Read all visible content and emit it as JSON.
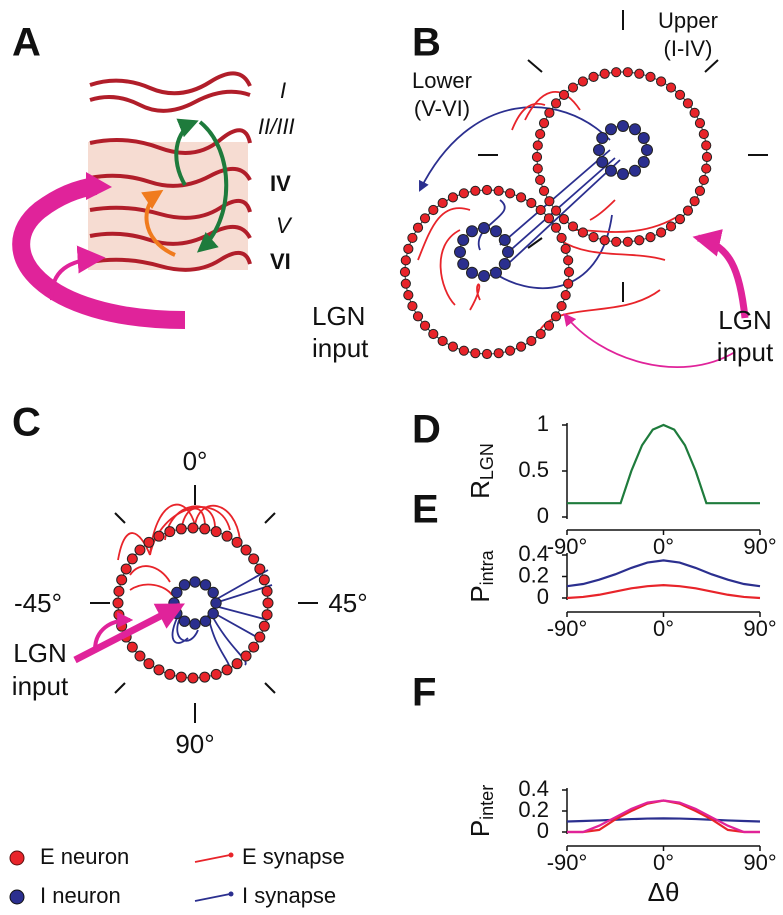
{
  "panel_a": {
    "label": "A",
    "layers": [
      "I",
      "II/III",
      "IV",
      "V",
      "VI"
    ],
    "input": [
      "LGN",
      "input"
    ]
  },
  "panel_b": {
    "label": "B",
    "upper": [
      "Upper",
      "(I-IV)"
    ],
    "lower": [
      "Lower",
      "(V-VI)"
    ],
    "input": [
      "LGN",
      "input"
    ]
  },
  "panel_c": {
    "label": "C",
    "angles": [
      "0°",
      "-45°",
      "45°",
      "90°"
    ],
    "input": [
      "LGN",
      "input"
    ]
  },
  "legend": [
    "E neuron",
    "I neuron",
    "E synapse",
    "I synapse"
  ],
  "chart_data": [
    {
      "type": "line",
      "panel": "D",
      "ylabel": {
        "text": "R",
        "subscript": "LGN"
      },
      "x": [
        -90,
        -40,
        -30,
        -20,
        -10,
        0,
        10,
        20,
        30,
        40,
        90
      ],
      "series": [
        {
          "color": "#1e7b3c",
          "values": [
            0.15,
            0.15,
            0.5,
            0.78,
            0.95,
            1,
            0.95,
            0.78,
            0.5,
            0.15,
            0.15
          ]
        }
      ],
      "xlim": [
        -90,
        90
      ],
      "ylim": [
        0,
        1
      ],
      "xticks": [
        {
          "value": -90,
          "label": "-90°"
        },
        {
          "value": 0,
          "label": "0°"
        },
        {
          "value": 90,
          "label": "90°"
        }
      ],
      "yticks": [
        0,
        0.5,
        1
      ]
    },
    {
      "type": "line",
      "panel": "E",
      "ylabel": {
        "text": "P",
        "subscript": "intra"
      },
      "x": [
        -90,
        -75,
        -60,
        -45,
        -30,
        -15,
        0,
        15,
        30,
        45,
        60,
        75,
        90
      ],
      "series": [
        {
          "color": "#2b2f8f",
          "values": [
            0.11,
            0.13,
            0.17,
            0.22,
            0.28,
            0.33,
            0.35,
            0.33,
            0.28,
            0.22,
            0.17,
            0.13,
            0.11
          ]
        },
        {
          "color": "#e8242a",
          "values": [
            0,
            0.01,
            0.03,
            0.06,
            0.09,
            0.11,
            0.12,
            0.11,
            0.09,
            0.06,
            0.03,
            0.01,
            0
          ]
        }
      ],
      "xlim": [
        -90,
        90
      ],
      "ylim": [
        0,
        0.4
      ],
      "xticks": [
        {
          "value": -90,
          "label": "-90°"
        },
        {
          "value": 0,
          "label": "0°"
        },
        {
          "value": 90,
          "label": "90°"
        }
      ],
      "yticks": [
        0,
        0.2,
        0.4
      ]
    },
    {
      "type": "line",
      "panel": "F",
      "ylabel": {
        "text": "P",
        "subscript": "inter"
      },
      "xlabel": "Δθ",
      "x": [
        -90,
        -75,
        -60,
        -45,
        -30,
        -15,
        0,
        15,
        30,
        45,
        60,
        75,
        90
      ],
      "series": [
        {
          "color": "#2b2f8f",
          "values": [
            0.1,
            0.105,
            0.11,
            0.117,
            0.123,
            0.128,
            0.13,
            0.128,
            0.123,
            0.117,
            0.11,
            0.105,
            0.1
          ]
        },
        {
          "color": "#e8242a",
          "values": [
            0,
            0,
            0.02,
            0.12,
            0.2,
            0.27,
            0.3,
            0.27,
            0.2,
            0.12,
            0.02,
            0,
            0
          ]
        },
        {
          "color": "#e0239a",
          "values": [
            0,
            0,
            0.06,
            0.14,
            0.22,
            0.28,
            0.3,
            0.28,
            0.22,
            0.14,
            0.06,
            0,
            0
          ]
        }
      ],
      "xlim": [
        -90,
        90
      ],
      "ylim": [
        0,
        0.4
      ],
      "xticks": [
        {
          "value": -90,
          "label": "-90°"
        },
        {
          "value": 0,
          "label": "0°"
        },
        {
          "value": 90,
          "label": "90°"
        }
      ],
      "yticks": [
        0,
        0.2,
        0.4
      ]
    }
  ]
}
